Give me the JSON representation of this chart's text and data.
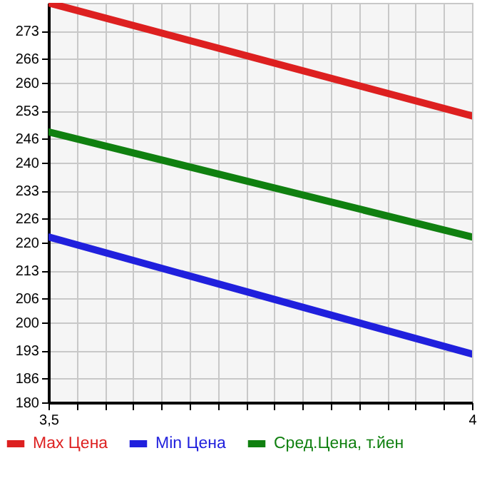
{
  "chart_data": {
    "type": "line",
    "x": [
      3.5,
      4
    ],
    "series": [
      {
        "name": "Max Цена",
        "color": "#dd2020",
        "values": [
          280,
          251.7
        ]
      },
      {
        "name": "Min Цена",
        "color": "#2020dd",
        "values": [
          221.4,
          192.1
        ]
      },
      {
        "name": "Сред.Цена, т.йен",
        "color": "#108010",
        "values": [
          247.7,
          221.4
        ]
      }
    ],
    "xlim": [
      3.5,
      4
    ],
    "xticks": [
      {
        "value": 3.5,
        "label": "3,5"
      },
      {
        "value": 3.5333,
        "label": null
      },
      {
        "value": 3.5667,
        "label": null
      },
      {
        "value": 3.6,
        "label": null
      },
      {
        "value": 3.6333,
        "label": null
      },
      {
        "value": 3.6667,
        "label": null
      },
      {
        "value": 3.7,
        "label": null
      },
      {
        "value": 3.7333,
        "label": null
      },
      {
        "value": 3.7667,
        "label": null
      },
      {
        "value": 3.8,
        "label": null
      },
      {
        "value": 3.8333,
        "label": null
      },
      {
        "value": 3.8667,
        "label": null
      },
      {
        "value": 3.9,
        "label": null
      },
      {
        "value": 3.9333,
        "label": null
      },
      {
        "value": 3.9667,
        "label": null
      },
      4
    ],
    "ylim": [
      180,
      280
    ],
    "yticks": [
      180,
      186,
      193,
      200,
      206,
      213,
      220,
      226,
      233,
      240,
      246,
      253,
      260,
      266,
      273
    ],
    "grid": true,
    "legend": "bottom",
    "marker": "none",
    "line_style": "solid"
  }
}
